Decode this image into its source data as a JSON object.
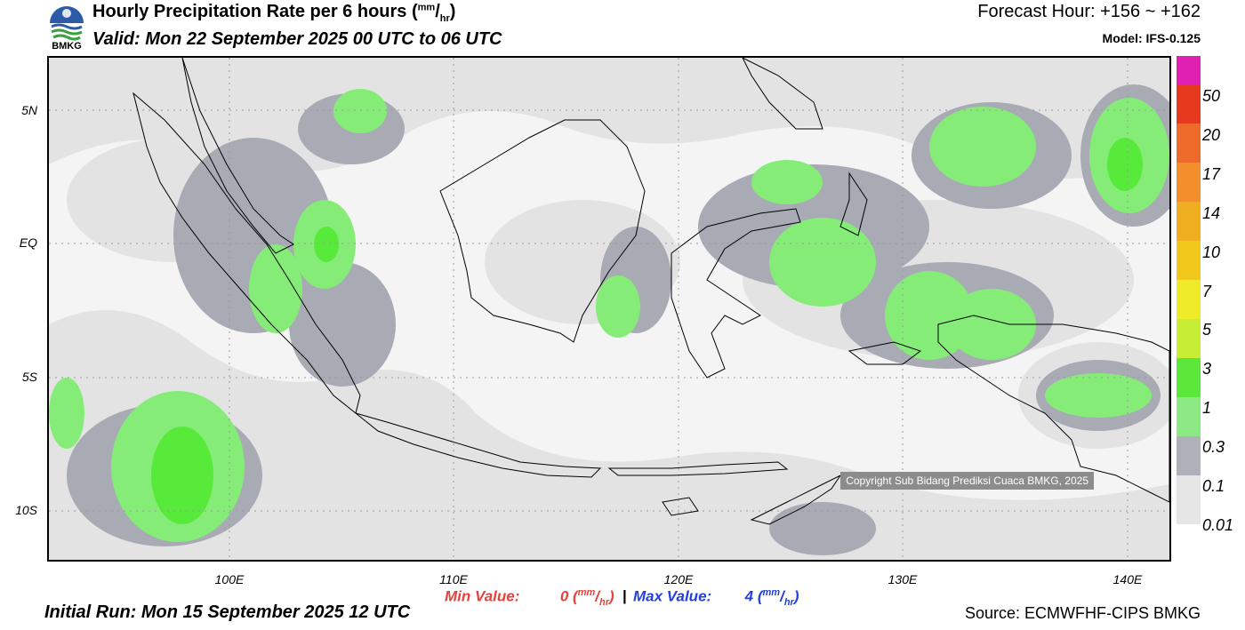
{
  "header": {
    "title": "Hourly Precipitation Rate per 6 hours",
    "title_unit_num": "mm",
    "title_unit_den": "hr",
    "valid": "Valid: Mon 22 September 2025 00 UTC to 06 UTC",
    "forecast_hour": "Forecast Hour: +156 ~ +162",
    "model": "Model: IFS-0.125"
  },
  "logo": {
    "text": "BMKG",
    "icon": "bmkg-logo-icon"
  },
  "map": {
    "lat_labels": [
      "5N",
      "EQ",
      "5S",
      "10S"
    ],
    "lon_labels": [
      "100E",
      "110E",
      "120E",
      "130E",
      "140E"
    ],
    "copyright": "Copyright Sub Bidang Prediksi Cuaca BMKG, 2025",
    "colors": {
      "grey_light": "#e3e3e3",
      "grey_dark": "#a8abb4",
      "green_light": "#86ec78",
      "green": "#57ea3a",
      "coast": "#000000"
    }
  },
  "legend": {
    "labels": [
      "50",
      "20",
      "17",
      "14",
      "10",
      "7",
      "5",
      "3",
      "1",
      "0.3",
      "0.1",
      "0.01"
    ],
    "colors": [
      "#e020b0",
      "#e63a1e",
      "#ee6a2a",
      "#f38e2c",
      "#efad20",
      "#f1c81c",
      "#f0eb28",
      "#c6ee34",
      "#9ae032",
      "#5ce83a",
      "#8de983",
      "#aeb1b8",
      "#e6e6e6"
    ]
  },
  "stats": {
    "min_label": "Min Value:",
    "min_value": "0",
    "max_label": "Max Value:",
    "max_value": "4",
    "unit_num": "mm",
    "unit_den": "hr",
    "separator": "|"
  },
  "footer": {
    "initial_run": "Initial Run: Mon 15 September 2025 12 UTC",
    "source": "Source: ECMWFHF-CIPS BMKG"
  }
}
